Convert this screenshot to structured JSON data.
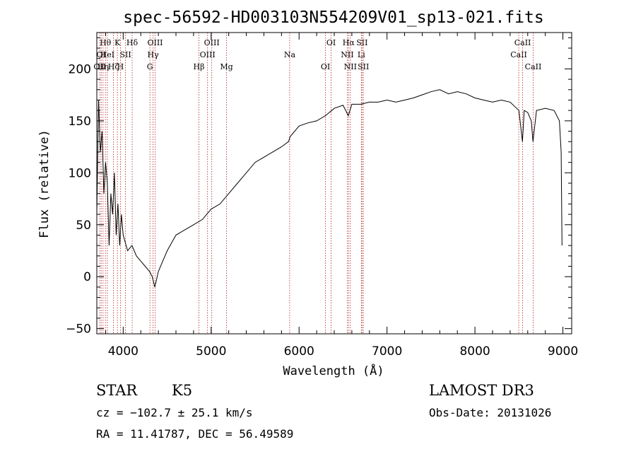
{
  "chart_data": {
    "type": "line",
    "title": "spec-56592-HD003103N554209V01_sp13-021.fits",
    "xlabel": "Wavelength (Å)",
    "ylabel": "Flux (relative)",
    "xlim": [
      3700,
      9100
    ],
    "ylim": [
      -55,
      235
    ],
    "xticks": [
      4000,
      5000,
      6000,
      7000,
      8000,
      9000
    ],
    "yticks": [
      -50,
      0,
      50,
      100,
      150,
      200
    ],
    "xtick_labels": [
      "4000",
      "5000",
      "6000",
      "7000",
      "8000",
      "9000"
    ],
    "ytick_labels": [
      "−50",
      "0",
      "50",
      "100",
      "150",
      "200"
    ],
    "grid": false,
    "series": [
      {
        "color": "#000000",
        "x": [
          3700,
          3720,
          3740,
          3760,
          3780,
          3800,
          3820,
          3840,
          3860,
          3880,
          3900,
          3920,
          3940,
          3960,
          3980,
          4000,
          4050,
          4100,
          4150,
          4200,
          4250,
          4300,
          4330,
          4360,
          4400,
          4450,
          4500,
          4600,
          4700,
          4800,
          4900,
          5000,
          5100,
          5200,
          5300,
          5400,
          5500,
          5600,
          5700,
          5800,
          5880,
          5900,
          6000,
          6100,
          6200,
          6300,
          6400,
          6500,
          6560,
          6600,
          6700,
          6800,
          6900,
          7000,
          7100,
          7200,
          7300,
          7400,
          7500,
          7600,
          7700,
          7800,
          7900,
          8000,
          8100,
          8200,
          8300,
          8400,
          8500,
          8540,
          8560,
          8600,
          8640,
          8660,
          8700,
          8800,
          8900,
          8960,
          8980,
          8990
        ],
        "y": [
          60,
          170,
          120,
          140,
          80,
          110,
          90,
          30,
          80,
          60,
          100,
          40,
          70,
          30,
          60,
          40,
          25,
          30,
          20,
          15,
          10,
          5,
          0,
          -10,
          5,
          15,
          25,
          40,
          45,
          50,
          55,
          65,
          70,
          80,
          90,
          100,
          110,
          115,
          120,
          125,
          130,
          135,
          145,
          148,
          150,
          155,
          162,
          165,
          155,
          166,
          166,
          168,
          168,
          170,
          168,
          170,
          172,
          175,
          178,
          180,
          176,
          178,
          176,
          172,
          170,
          168,
          170,
          168,
          160,
          130,
          160,
          158,
          150,
          130,
          160,
          162,
          160,
          150,
          120,
          30
        ]
      }
    ],
    "line_marks": [
      {
        "wl": 3734,
        "label": "OII",
        "row": 2
      },
      {
        "wl": 3750,
        "label": "OI",
        "row": 1
      },
      {
        "wl": 3771,
        "label": "Hη",
        "row": 2
      },
      {
        "wl": 3798,
        "label": "Hθ",
        "row": 0
      },
      {
        "wl": 3820,
        "label": "HeI",
        "row": 1
      },
      {
        "wl": 3889,
        "label": "Hζ",
        "row": 2
      },
      {
        "wl": 3934,
        "label": "K",
        "row": 0
      },
      {
        "wl": 3969,
        "label": "H",
        "row": 2
      },
      {
        "wl": 4026,
        "label": "SII",
        "row": 1
      },
      {
        "wl": 4102,
        "label": "Hδ",
        "row": 0
      },
      {
        "wl": 4304,
        "label": "G",
        "row": 2
      },
      {
        "wl": 4340,
        "label": "Hγ",
        "row": 1
      },
      {
        "wl": 4363,
        "label": "OIII",
        "row": 0
      },
      {
        "wl": 4861,
        "label": "Hβ",
        "row": 2
      },
      {
        "wl": 4959,
        "label": "OIII",
        "row": 1
      },
      {
        "wl": 5007,
        "label": "OIII",
        "row": 0
      },
      {
        "wl": 5175,
        "label": "Mg",
        "row": 2
      },
      {
        "wl": 5893,
        "label": "Na",
        "row": 1
      },
      {
        "wl": 6300,
        "label": "OI",
        "row": 2
      },
      {
        "wl": 6364,
        "label": "OI",
        "row": 0
      },
      {
        "wl": 6548,
        "label": "NII",
        "row": 1
      },
      {
        "wl": 6563,
        "label": "Hα",
        "row": 0
      },
      {
        "wl": 6583,
        "label": "NII",
        "row": 2
      },
      {
        "wl": 6708,
        "label": "Li",
        "row": 1
      },
      {
        "wl": 6716,
        "label": "SII",
        "row": 0
      },
      {
        "wl": 6731,
        "label": "SII",
        "row": 2
      },
      {
        "wl": 8498,
        "label": "CaII",
        "row": 1
      },
      {
        "wl": 8542,
        "label": "CaII",
        "row": 0
      },
      {
        "wl": 8662,
        "label": "CaII",
        "row": 2
      }
    ]
  },
  "info": {
    "class": "STAR",
    "subclass": "K5",
    "survey": "LAMOST DR3",
    "cz": "cz = −102.7 ± 25.1 km/s",
    "obs_date": "Obs-Date: 20131026",
    "coords": "RA =  11.41787, DEC =  56.49589"
  }
}
